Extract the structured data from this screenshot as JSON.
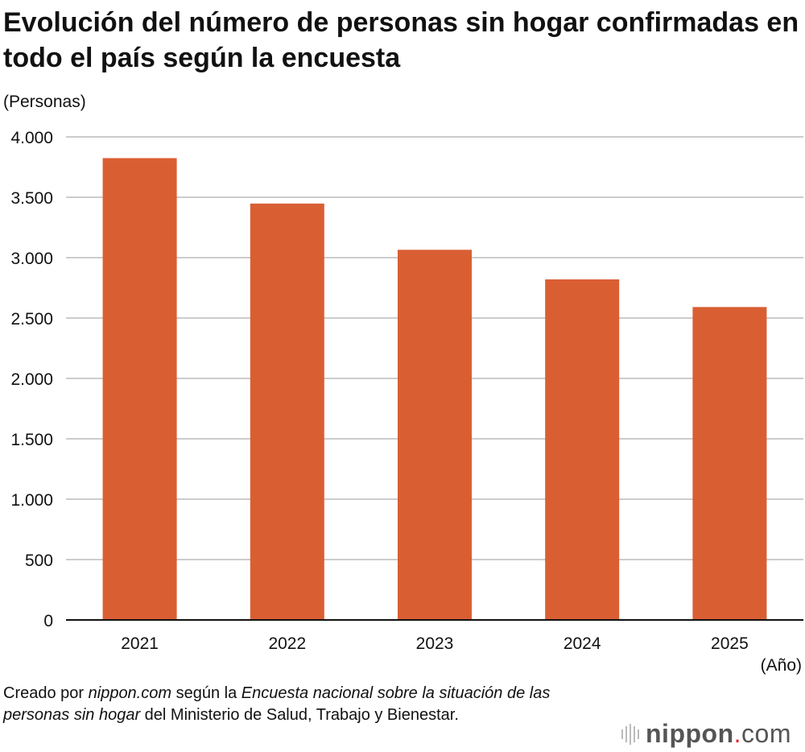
{
  "title": "Evolución del número de personas sin hogar confirmadas en todo el país según la encuesta",
  "source": {
    "prefix": "Creado por ",
    "site": "nippon.com",
    "mid": " según la ",
    "survey": "Encuesta nacional sobre la situación de las personas sin hogar",
    "suffix": " del Ministerio de Salud, Trabajo y Bienestar."
  },
  "logo": {
    "text": "nippon.com"
  },
  "chart_data": {
    "type": "bar",
    "title": "Evolución del número de personas sin hogar confirmadas en todo el país según la encuesta",
    "ylabel": "(Personas)",
    "xlabel": "(Año)",
    "categories": [
      "2021",
      "2022",
      "2023",
      "2024",
      "2025"
    ],
    "values": [
      3824,
      3448,
      3065,
      2820,
      2591
    ],
    "ylim": [
      0,
      4000
    ],
    "yticks": [
      0,
      500,
      1000,
      1500,
      2000,
      2500,
      3000,
      3500,
      4000
    ],
    "ytick_labels": [
      "0",
      "500",
      "1.000",
      "1.500",
      "2.000",
      "2.500",
      "3.000",
      "3.500",
      "4.000"
    ],
    "grid": true,
    "bar_color": "#d95f33",
    "grid_color": "#cccccc"
  }
}
